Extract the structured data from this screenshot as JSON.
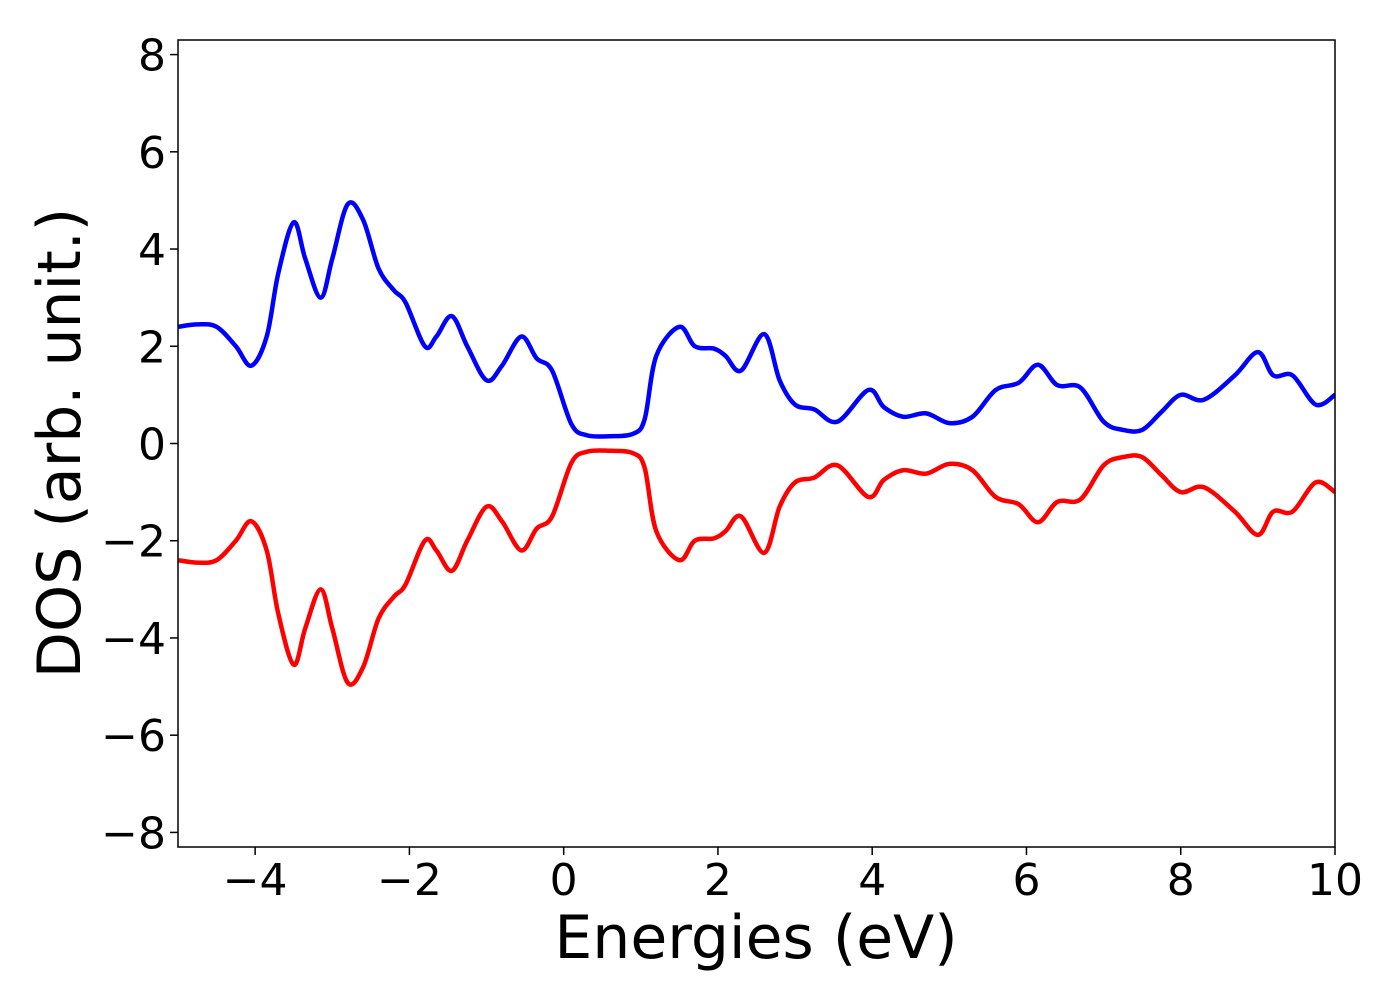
{
  "chart_data": {
    "type": "line",
    "x_label": "Energies (eV)",
    "y_label": "DOS (arb. unit.)",
    "x": [
      -5,
      -4.75,
      -4.5,
      -4.25,
      -4.05,
      -3.85,
      -3.7,
      -3.5,
      -3.35,
      -3.15,
      -3.0,
      -2.8,
      -2.6,
      -2.4,
      -2.2,
      -2.05,
      -1.8,
      -1.65,
      -1.45,
      -1.25,
      -1.0,
      -0.8,
      -0.55,
      -0.35,
      -0.15,
      0.1,
      0.3,
      0.6,
      0.9,
      1.05,
      1.2,
      1.5,
      1.7,
      1.95,
      2.1,
      2.3,
      2.6,
      2.8,
      3.0,
      3.25,
      3.55,
      3.95,
      4.15,
      4.4,
      4.7,
      5.0,
      5.3,
      5.6,
      5.9,
      6.15,
      6.4,
      6.7,
      7.0,
      7.25,
      7.5,
      7.75,
      8.0,
      8.3,
      8.7,
      9.0,
      9.2,
      9.45,
      9.75,
      10
    ],
    "series": [
      {
        "color": "#0000ff",
        "values": [
          2.4,
          2.45,
          2.4,
          2.0,
          1.6,
          2.2,
          3.5,
          4.55,
          3.8,
          3.0,
          3.8,
          4.92,
          4.6,
          3.6,
          3.15,
          2.9,
          2.0,
          2.2,
          2.62,
          2.0,
          1.3,
          1.6,
          2.2,
          1.75,
          1.5,
          0.4,
          0.17,
          0.15,
          0.2,
          0.5,
          1.8,
          2.4,
          2.0,
          1.95,
          1.8,
          1.5,
          2.25,
          1.3,
          0.8,
          0.7,
          0.45,
          1.1,
          0.75,
          0.55,
          0.62,
          0.42,
          0.55,
          1.1,
          1.25,
          1.62,
          1.2,
          1.15,
          0.45,
          0.28,
          0.28,
          0.65,
          1.0,
          0.9,
          1.4,
          1.88,
          1.4,
          1.4,
          0.8,
          1.0
        ]
      },
      {
        "color": "#ff0000",
        "values": [
          -2.4,
          -2.45,
          -2.4,
          -2.0,
          -1.6,
          -2.2,
          -3.5,
          -4.55,
          -3.8,
          -3.0,
          -3.8,
          -4.92,
          -4.6,
          -3.6,
          -3.15,
          -2.9,
          -2.0,
          -2.2,
          -2.62,
          -2.0,
          -1.3,
          -1.6,
          -2.2,
          -1.75,
          -1.5,
          -0.4,
          -0.17,
          -0.15,
          -0.2,
          -0.5,
          -1.8,
          -2.4,
          -2.0,
          -1.95,
          -1.8,
          -1.5,
          -2.25,
          -1.3,
          -0.8,
          -0.7,
          -0.45,
          -1.1,
          -0.75,
          -0.55,
          -0.62,
          -0.42,
          -0.55,
          -1.1,
          -1.25,
          -1.62,
          -1.2,
          -1.15,
          -0.45,
          -0.28,
          -0.28,
          -0.65,
          -1.0,
          -0.9,
          -1.4,
          -1.88,
          -1.4,
          -1.4,
          -0.8,
          -1.0
        ]
      }
    ],
    "xlim": [
      -5,
      10
    ],
    "xticks": [
      {
        "value": -4,
        "label": "−4"
      },
      {
        "value": -2,
        "label": "−2"
      },
      0,
      2,
      4,
      6,
      8,
      10
    ],
    "ylim": [
      -8.3,
      8.3
    ],
    "yticks": [
      {
        "value": -8,
        "label": "−8"
      },
      {
        "value": -6,
        "label": "−6"
      },
      {
        "value": -4,
        "label": "−4"
      },
      {
        "value": -2,
        "label": "−2"
      },
      0,
      2,
      4,
      6,
      8
    ],
    "grid": false
  }
}
